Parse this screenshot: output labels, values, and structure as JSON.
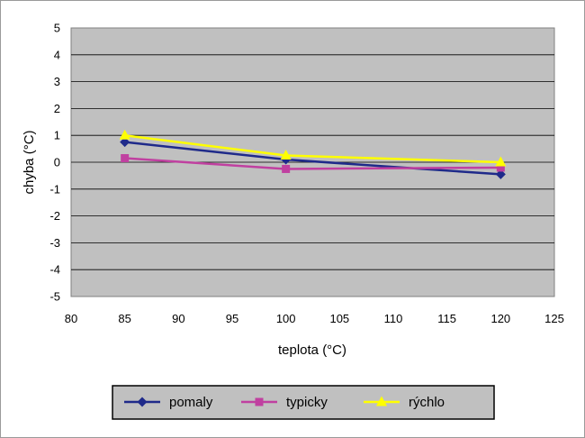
{
  "chart_data": {
    "type": "line",
    "title": "",
    "xlabel": "teplota (°C)",
    "ylabel": "chyba (°C)",
    "xlim": [
      80,
      125
    ],
    "ylim": [
      -5,
      5
    ],
    "xticks": [
      80,
      85,
      90,
      95,
      100,
      105,
      110,
      115,
      120,
      125
    ],
    "yticks": [
      5,
      4,
      3,
      2,
      1,
      0,
      -1,
      -2,
      -3,
      -4,
      -5
    ],
    "grid": true,
    "legend_position": "bottom",
    "x": [
      85,
      100,
      120
    ],
    "series": [
      {
        "name": "pomaly",
        "values": [
          0.75,
          0.1,
          -0.45
        ],
        "color": "#1f2a8a",
        "marker": "diamond"
      },
      {
        "name": "typicky",
        "values": [
          0.15,
          -0.25,
          -0.2
        ],
        "color": "#c040a0",
        "marker": "square"
      },
      {
        "name": "rýchlo",
        "values": [
          1.0,
          0.25,
          0.0
        ],
        "color": "#ffff00",
        "marker": "triangle"
      }
    ]
  }
}
